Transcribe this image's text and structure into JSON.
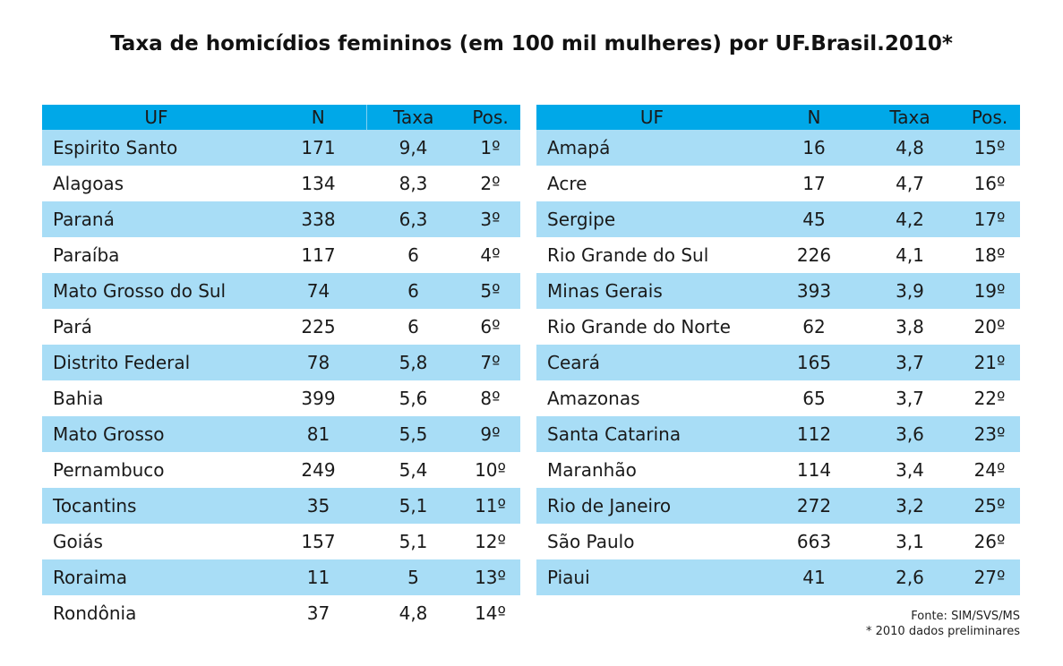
{
  "title": "Taxa de homicídios femininos (em 100 mil mulheres) por UF.Brasil.2010*",
  "headers": {
    "uf": "UF",
    "n": "N",
    "taxa": "Taxa",
    "pos": "Pos."
  },
  "colors": {
    "header": "#00a8e8",
    "stripe": "#a8ddf6"
  },
  "chart_data": {
    "type": "table",
    "title": "Taxa de homicídios femininos (em 100 mil mulheres) por UF.Brasil.2010*",
    "columns": [
      "UF",
      "N",
      "Taxa",
      "Pos."
    ],
    "left": [
      {
        "uf": "Espirito Santo",
        "n": "171",
        "taxa": "9,4",
        "pos": "1º"
      },
      {
        "uf": "Alagoas",
        "n": "134",
        "taxa": "8,3",
        "pos": "2º"
      },
      {
        "uf": "Paraná",
        "n": "338",
        "taxa": "6,3",
        "pos": "3º"
      },
      {
        "uf": "Paraíba",
        "n": "117",
        "taxa": "6",
        "pos": "4º"
      },
      {
        "uf": "Mato Grosso do Sul",
        "n": "74",
        "taxa": "6",
        "pos": "5º"
      },
      {
        "uf": "Pará",
        "n": "225",
        "taxa": "6",
        "pos": "6º"
      },
      {
        "uf": "Distrito Federal",
        "n": "78",
        "taxa": "5,8",
        "pos": "7º"
      },
      {
        "uf": "Bahia",
        "n": "399",
        "taxa": "5,6",
        "pos": "8º"
      },
      {
        "uf": "Mato Grosso",
        "n": "81",
        "taxa": "5,5",
        "pos": "9º"
      },
      {
        "uf": "Pernambuco",
        "n": "249",
        "taxa": "5,4",
        "pos": "10º"
      },
      {
        "uf": "Tocantins",
        "n": "35",
        "taxa": "5,1",
        "pos": "11º"
      },
      {
        "uf": "Goiás",
        "n": "157",
        "taxa": "5,1",
        "pos": "12º"
      },
      {
        "uf": "Roraima",
        "n": "11",
        "taxa": "5",
        "pos": "13º"
      },
      {
        "uf": "Rondônia",
        "n": "37",
        "taxa": "4,8",
        "pos": "14º"
      }
    ],
    "right": [
      {
        "uf": "Amapá",
        "n": "16",
        "taxa": "4,8",
        "pos": "15º"
      },
      {
        "uf": "Acre",
        "n": "17",
        "taxa": "4,7",
        "pos": "16º"
      },
      {
        "uf": "Sergipe",
        "n": "45",
        "taxa": "4,2",
        "pos": "17º"
      },
      {
        "uf": "Rio Grande do Sul",
        "n": "226",
        "taxa": "4,1",
        "pos": "18º"
      },
      {
        "uf": "Minas Gerais",
        "n": "393",
        "taxa": "3,9",
        "pos": "19º"
      },
      {
        "uf": "Rio Grande do Norte",
        "n": "62",
        "taxa": "3,8",
        "pos": "20º"
      },
      {
        "uf": "Ceará",
        "n": "165",
        "taxa": "3,7",
        "pos": "21º"
      },
      {
        "uf": "Amazonas",
        "n": "65",
        "taxa": "3,7",
        "pos": "22º"
      },
      {
        "uf": "Santa Catarina",
        "n": "112",
        "taxa": "3,6",
        "pos": "23º"
      },
      {
        "uf": "Maranhão",
        "n": "114",
        "taxa": "3,4",
        "pos": "24º"
      },
      {
        "uf": "Rio de Janeiro",
        "n": "272",
        "taxa": "3,2",
        "pos": "25º"
      },
      {
        "uf": "São Paulo",
        "n": "663",
        "taxa": "3,1",
        "pos": "26º"
      },
      {
        "uf": "Piaui",
        "n": "41",
        "taxa": "2,6",
        "pos": "27º"
      }
    ]
  },
  "source": {
    "line1": "Fonte: SIM/SVS/MS",
    "line2": "* 2010 dados preliminares"
  }
}
